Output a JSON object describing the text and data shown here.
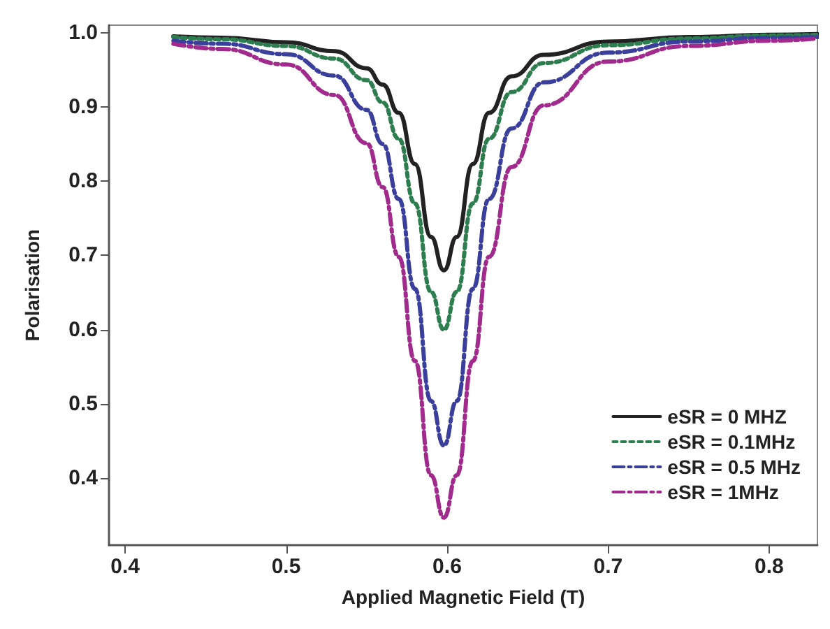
{
  "chart_data": {
    "type": "line",
    "xlabel": "Applied Magnetic Field (T)",
    "ylabel": "Polarisation",
    "x": [
      0.43,
      0.46,
      0.5,
      0.53,
      0.55,
      0.56,
      0.57,
      0.58,
      0.59,
      0.598,
      0.606,
      0.616,
      0.626,
      0.64,
      0.66,
      0.7,
      0.75,
      0.8,
      0.83
    ],
    "series": [
      {
        "name": "eSR = 0 MHZ",
        "color": "#222222",
        "line_style": "solid",
        "values": [
          0.995,
          0.993,
          0.987,
          0.975,
          0.952,
          0.93,
          0.892,
          0.823,
          0.725,
          0.68,
          0.725,
          0.823,
          0.892,
          0.941,
          0.97,
          0.988,
          0.994,
          0.997,
          0.998
        ]
      },
      {
        "name": "eSR = 0.1MHz",
        "color": "#2e7d4f",
        "line_style": "dotted",
        "values": [
          0.994,
          0.991,
          0.982,
          0.965,
          0.936,
          0.906,
          0.857,
          0.77,
          0.651,
          0.6,
          0.651,
          0.77,
          0.857,
          0.92,
          0.959,
          0.983,
          0.992,
          0.996,
          0.997
        ]
      },
      {
        "name": "eSR = 0.5 MHz",
        "color": "#3b3f9c",
        "line_style": "dashed",
        "values": [
          0.989,
          0.985,
          0.971,
          0.942,
          0.896,
          0.85,
          0.776,
          0.655,
          0.504,
          0.444,
          0.504,
          0.655,
          0.776,
          0.871,
          0.933,
          0.973,
          0.988,
          0.993,
          0.994
        ]
      },
      {
        "name": "eSR = 1MHz",
        "color": "#a02b8c",
        "line_style": "dashed",
        "values": [
          0.985,
          0.978,
          0.957,
          0.916,
          0.851,
          0.792,
          0.698,
          0.558,
          0.404,
          0.347,
          0.404,
          0.558,
          0.698,
          0.819,
          0.902,
          0.961,
          0.982,
          0.989,
          0.992
        ]
      }
    ],
    "xlim": [
      0.39,
      0.83
    ],
    "xticks": [
      0.4,
      0.5,
      0.6,
      0.7,
      0.8
    ],
    "ylim": [
      0.31,
      1.01
    ],
    "yticks": [
      0.4,
      0.5,
      0.6,
      0.7,
      0.8,
      0.9,
      {
        "value": 1,
        "label": "1.0"
      }
    ],
    "grid": false,
    "legend": "bottom right",
    "marker": "none"
  }
}
